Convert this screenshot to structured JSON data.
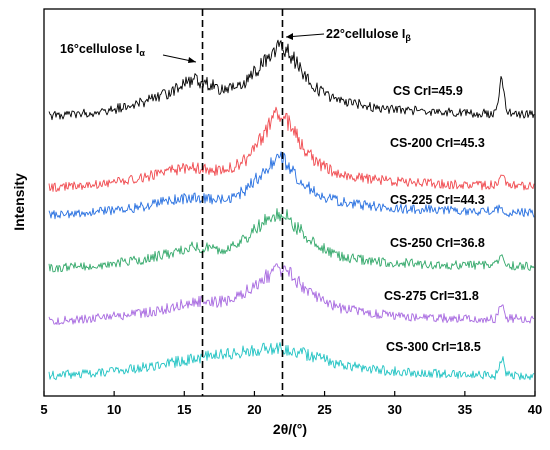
{
  "chart_data": {
    "type": "line",
    "title": "",
    "xlabel": "2θ/(°)",
    "ylabel": "Intensity",
    "xlim": [
      5,
      40
    ],
    "xticks": [
      5,
      10,
      15,
      20,
      25,
      30,
      35,
      40
    ],
    "grid": false,
    "legend": "none",
    "reference_lines": [
      {
        "x": 16.3,
        "label": "16°cellulose I",
        "subscript": "α"
      },
      {
        "x": 22.0,
        "label": "22°cellulose I",
        "subscript": "β"
      }
    ],
    "series": [
      {
        "label": "CS   CrI=45.9",
        "color": "#000000",
        "x": [
          5,
          8,
          10,
          12,
          14,
          15.5,
          16.5,
          17.5,
          18.5,
          19.5,
          20.5,
          21.5,
          22,
          22.5,
          23.5,
          24.5,
          26,
          28,
          30,
          32,
          34,
          36,
          37.2,
          37.6,
          38,
          40
        ],
        "y": [
          0.02,
          0.05,
          0.09,
          0.16,
          0.27,
          0.4,
          0.38,
          0.3,
          0.32,
          0.4,
          0.55,
          0.73,
          0.77,
          0.68,
          0.46,
          0.3,
          0.18,
          0.13,
          0.09,
          0.07,
          0.06,
          0.05,
          0.05,
          0.42,
          0.05,
          0.04
        ]
      },
      {
        "label": "CS-200  CrI=45.3",
        "color": "#f04a4f",
        "x": [
          5,
          8,
          10,
          12,
          14,
          15.5,
          16.5,
          17.5,
          18.5,
          19.5,
          20.5,
          21.5,
          22,
          22.5,
          23.5,
          24.5,
          26,
          28,
          30,
          32,
          34,
          36,
          37.2,
          37.6,
          38,
          40
        ],
        "y": [
          0.02,
          0.05,
          0.08,
          0.13,
          0.2,
          0.24,
          0.23,
          0.2,
          0.24,
          0.33,
          0.55,
          0.77,
          0.8,
          0.68,
          0.45,
          0.28,
          0.16,
          0.12,
          0.09,
          0.07,
          0.06,
          0.05,
          0.05,
          0.15,
          0.05,
          0.04
        ]
      },
      {
        "label": "CS-225  CrI=44.3",
        "color": "#2870e0",
        "x": [
          5,
          8,
          10,
          12,
          14,
          15.5,
          16.5,
          17.5,
          18.5,
          19.5,
          20.5,
          21.5,
          22,
          22.5,
          23.5,
          24.5,
          26,
          28,
          30,
          32,
          34,
          36,
          37.2,
          37.6,
          38,
          40
        ],
        "y": [
          0.02,
          0.04,
          0.07,
          0.11,
          0.17,
          0.21,
          0.2,
          0.18,
          0.21,
          0.3,
          0.45,
          0.6,
          0.62,
          0.52,
          0.35,
          0.24,
          0.16,
          0.12,
          0.09,
          0.08,
          0.07,
          0.06,
          0.06,
          0.1,
          0.05,
          0.04
        ]
      },
      {
        "label": "CS-250  CrI=36.8",
        "color": "#33a86a",
        "x": [
          5,
          8,
          10,
          12,
          14,
          15.5,
          16.5,
          17.5,
          18.5,
          19.5,
          20.5,
          21.5,
          22,
          22.5,
          23.5,
          24.5,
          26,
          28,
          30,
          32,
          34,
          36,
          37.2,
          37.6,
          38,
          40
        ],
        "y": [
          0.02,
          0.04,
          0.07,
          0.11,
          0.18,
          0.24,
          0.24,
          0.22,
          0.25,
          0.34,
          0.48,
          0.58,
          0.6,
          0.53,
          0.38,
          0.25,
          0.15,
          0.1,
          0.08,
          0.06,
          0.05,
          0.05,
          0.05,
          0.18,
          0.05,
          0.04
        ]
      },
      {
        "label": "CS-275  CrI=31.8",
        "color": "#a86ae0",
        "x": [
          5,
          8,
          10,
          12,
          14,
          15.5,
          16.5,
          17.5,
          18.5,
          19.5,
          20.5,
          21.5,
          22,
          22.5,
          23.5,
          24.5,
          26,
          28,
          30,
          32,
          34,
          36,
          37.2,
          37.6,
          38,
          40
        ],
        "y": [
          0.02,
          0.04,
          0.07,
          0.1,
          0.16,
          0.22,
          0.23,
          0.22,
          0.26,
          0.34,
          0.45,
          0.55,
          0.58,
          0.52,
          0.38,
          0.26,
          0.16,
          0.11,
          0.08,
          0.06,
          0.05,
          0.05,
          0.05,
          0.22,
          0.05,
          0.04
        ]
      },
      {
        "label": "CS-300  CrI=18.5",
        "color": "#22c3c3",
        "x": [
          5,
          8,
          10,
          12,
          14,
          15.5,
          16.5,
          17.5,
          18.5,
          19.5,
          20.5,
          21.5,
          22,
          22.5,
          23.5,
          24.5,
          26,
          28,
          30,
          32,
          34,
          36,
          37.2,
          37.6,
          38,
          40
        ],
        "y": [
          0.04,
          0.07,
          0.1,
          0.13,
          0.18,
          0.22,
          0.24,
          0.26,
          0.28,
          0.3,
          0.32,
          0.33,
          0.33,
          0.32,
          0.28,
          0.23,
          0.17,
          0.12,
          0.09,
          0.07,
          0.06,
          0.05,
          0.05,
          0.25,
          0.05,
          0.04
        ]
      }
    ]
  }
}
